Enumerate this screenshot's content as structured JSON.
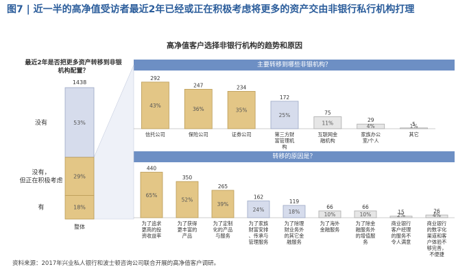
{
  "figure": {
    "title": "图7 | 近一半的高净值受访者最近2年已经或正在积极考虑将更多的资产交由非银行私行机构打理",
    "subtitle": "高净值客户选择非银行机构的趋势和原因",
    "source": "资料来源：2017年兴业私人银行和波士顿咨询公司联合开展的高净值客户调研。"
  },
  "colors": {
    "gold": "#e3c686",
    "gold_stroke": "#b99a55",
    "lavender": "#d6dcec",
    "lavender_stroke": "#9aa7c4",
    "gray": "#e6e6e6",
    "gray_stroke": "#aaaaaa",
    "band": "#6d8fc4"
  },
  "chart_data": [
    {
      "type": "bar",
      "name": "stacked-total",
      "question": "最近2年是否把更多资产转移到非银机构配置？",
      "category": "整体",
      "total": 1438,
      "segments": [
        {
          "label": "没有",
          "pct_label": "53%",
          "value": 53,
          "color": "lavender"
        },
        {
          "label": "没有，但正在积极考虑",
          "pct_label": "29%",
          "value": 29,
          "color": "gold"
        },
        {
          "label": "有",
          "pct_label": "18%",
          "value": 18,
          "color": "gold"
        }
      ]
    },
    {
      "type": "bar",
      "header": "主要转移到哪些非银机构？",
      "ylim": [
        0,
        300
      ],
      "categories": [
        "信托公司",
        "保险公司",
        "证券公司",
        "第三方财富管理机构",
        "互联网金融机构",
        "家族办公室/个人",
        "其它"
      ],
      "values": [
        292,
        247,
        234,
        172,
        75,
        29,
        5
      ],
      "pct_labels": [
        "43%",
        "36%",
        "35%",
        "25%",
        "11%",
        "4%",
        "1%"
      ],
      "colors": [
        "gold",
        "gold",
        "gold",
        "lavender",
        "gray",
        "gray",
        "gray"
      ]
    },
    {
      "type": "bar",
      "header": "转移的原因是？",
      "ylim": [
        0,
        450
      ],
      "categories": [
        "为了追求更高的投资收益率",
        "为了获得更丰富的产品",
        "为了定制化的产品与服务",
        "为了家族财富安排、传承与管理服务",
        "为了除理财业务外的其它金融服务",
        "为了海外金融服务",
        "为了除金融服务外的增值服务",
        "商业银行客户经理的服务不令人满意",
        "商业银行的数字化渠道和客户体验不够完善，不便捷"
      ],
      "values": [
        440,
        350,
        265,
        162,
        119,
        66,
        66,
        15,
        26
      ],
      "pct_labels": [
        "65%",
        "52%",
        "39%",
        "24%",
        "18%",
        "10%",
        "10%",
        "2%",
        "4%"
      ],
      "colors": [
        "gold",
        "gold",
        "gold",
        "lavender",
        "lavender",
        "gray",
        "gray",
        "gray",
        "gray"
      ]
    }
  ]
}
